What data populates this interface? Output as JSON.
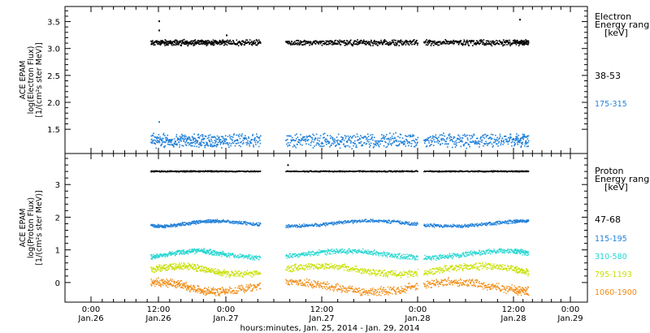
{
  "chart_data": [
    {
      "type": "scatter",
      "panel": "electron",
      "ylabel_lines": [
        "ACE EPAM",
        "log(Electron Flux)",
        "[1/(cm²s ster MeV)]"
      ],
      "yticks": [
        "1.5",
        "2.0",
        "2.5",
        "3.0",
        "3.5"
      ],
      "ylim": [
        1.05,
        3.78
      ],
      "legend_title_lines": [
        "Electron",
        "Energy range",
        "[keV]"
      ],
      "series": [
        {
          "name": "38-53",
          "color": "#000000",
          "baseline": 3.12,
          "spread": 0.04,
          "wave": 0.0,
          "noise_seed": 11,
          "size": 1.6,
          "outliers": [
            [
              0.5,
              3.52
            ],
            [
              0.5,
              3.35
            ],
            [
              2.55,
              3.55
            ],
            [
              1.0,
              3.26
            ]
          ]
        },
        {
          "name": "175-315",
          "color": "#1f7fd8",
          "baseline": 1.3,
          "spread": 0.1,
          "wave": 0.0,
          "noise_seed": 23,
          "size": 1.6,
          "outliers": [
            [
              0.5,
              1.65
            ],
            [
              2.48,
              1.42
            ]
          ]
        }
      ]
    },
    {
      "type": "scatter",
      "panel": "proton",
      "ylabel_lines": [
        "ACE EPAM",
        "log(Proton Flux)",
        "[1/(cm²s ster MeV)]"
      ],
      "yticks": [
        "0",
        "1",
        "2",
        "3"
      ],
      "ylim": [
        -0.6,
        3.95
      ],
      "legend_title_lines": [
        "Proton",
        "Energy range",
        "[keV]"
      ],
      "series": [
        {
          "name": "47-68",
          "color": "#000000",
          "baseline": 3.42,
          "spread": 0.015,
          "wave": 0.0,
          "noise_seed": 31,
          "size": 1.4,
          "outliers": [
            [
              1.32,
              3.62
            ]
          ]
        },
        {
          "name": "115-195",
          "color": "#1f7fd8",
          "baseline": 1.82,
          "spread": 0.04,
          "wave": 0.08,
          "noise_seed": 37,
          "size": 1.4,
          "outliers": []
        },
        {
          "name": "310-580",
          "color": "#22d6d0",
          "baseline": 0.88,
          "spread": 0.06,
          "wave": 0.1,
          "noise_seed": 41,
          "size": 1.4,
          "outliers": []
        },
        {
          "name": "795-1193",
          "color": "#c8e000",
          "baseline": 0.4,
          "spread": 0.08,
          "wave": 0.12,
          "noise_seed": 43,
          "size": 1.4,
          "outliers": []
        },
        {
          "name": "1060-1900",
          "color": "#f08a10",
          "baseline": -0.12,
          "spread": 0.1,
          "wave": 0.14,
          "noise_seed": 47,
          "size": 1.4,
          "outliers": []
        }
      ]
    }
  ],
  "x_axis": {
    "ticks": [
      {
        "time": "0:00",
        "date": "Jan.26"
      },
      {
        "time": "12:00",
        "date": "Jan.26"
      },
      {
        "time": "0:00",
        "date": "Jan.27"
      },
      {
        "time": "12:00",
        "date": "Jan.27"
      },
      {
        "time": "0:00",
        "date": "Jan.28"
      },
      {
        "time": "12:00",
        "date": "Jan.28"
      },
      {
        "time": "0:00",
        "date": "Jan.29"
      }
    ],
    "label": "hours:minutes, Jan. 25, 2014 - Jan. 29, 2014"
  }
}
